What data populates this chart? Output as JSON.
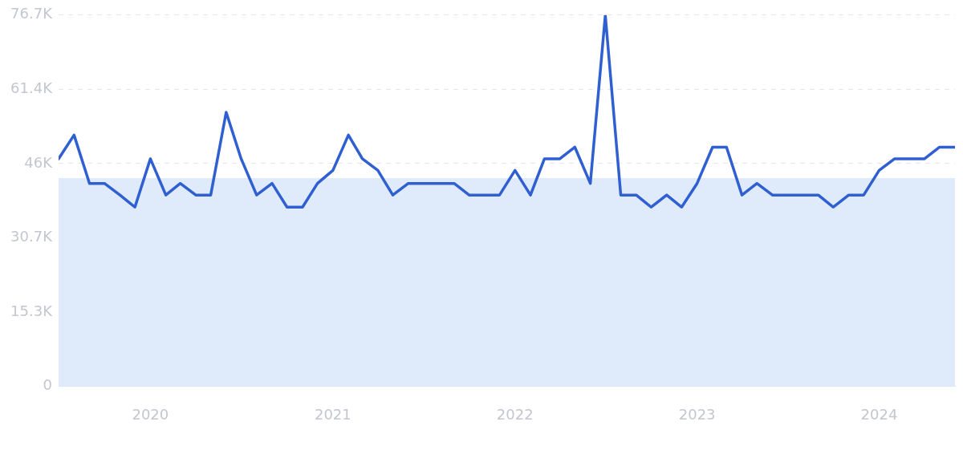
{
  "chart_data": {
    "type": "line",
    "x": [
      "2019-07",
      "2019-08",
      "2019-09",
      "2019-10",
      "2019-11",
      "2019-12",
      "2020-01",
      "2020-02",
      "2020-03",
      "2020-04",
      "2020-05",
      "2020-06",
      "2020-07",
      "2020-08",
      "2020-09",
      "2020-10",
      "2020-11",
      "2020-12",
      "2021-01",
      "2021-02",
      "2021-03",
      "2021-04",
      "2021-05",
      "2021-06",
      "2021-07",
      "2021-08",
      "2021-09",
      "2021-10",
      "2021-11",
      "2021-12",
      "2022-01",
      "2022-02",
      "2022-03",
      "2022-04",
      "2022-05",
      "2022-06",
      "2022-07",
      "2022-08",
      "2022-09",
      "2022-10",
      "2022-11",
      "2022-12",
      "2023-01",
      "2023-02",
      "2023-03",
      "2023-04",
      "2023-05",
      "2023-06",
      "2023-07",
      "2023-08",
      "2023-09",
      "2023-10",
      "2023-11",
      "2023-12",
      "2024-01",
      "2024-02",
      "2024-03",
      "2024-04",
      "2024-05",
      "2024-06"
    ],
    "series": [
      {
        "color": "#2f5fd0",
        "values": [
          47000,
          51900,
          41900,
          41900,
          39500,
          37000,
          47000,
          39500,
          41900,
          39500,
          39500,
          56600,
          47000,
          39500,
          41900,
          37000,
          37000,
          41900,
          44600,
          51900,
          47000,
          44600,
          39500,
          41900,
          41900,
          41900,
          41900,
          39500,
          39500,
          39500,
          44600,
          39500,
          47000,
          47000,
          49400,
          41900,
          76700,
          39500,
          39500,
          37000,
          39500,
          37000,
          41900,
          49400,
          49400,
          39500,
          41900,
          39500,
          39500,
          39500,
          39500,
          37000,
          39500,
          39500,
          44600,
          47000,
          47000,
          47000,
          49400,
          49400
        ]
      }
    ],
    "xlim": [
      "2019-07",
      "2024-06"
    ],
    "xticks": [
      "2020",
      "2021",
      "2022",
      "2023",
      "2024"
    ],
    "ylim": [
      0,
      76700
    ],
    "yticks": [
      0,
      {
        "value": 15300,
        "label": "15.3K"
      },
      {
        "value": 30700,
        "label": "30.7K"
      },
      {
        "value": 46000,
        "label": "46K"
      },
      {
        "value": 61400,
        "label": "61.4K"
      },
      {
        "value": 76700,
        "label": "76.7K"
      }
    ],
    "bands": [
      {
        "axis": "y",
        "from": 0,
        "to": 43000,
        "color": "#dfeafb"
      }
    ],
    "grid": "y",
    "marker": "none",
    "line_style": "solid",
    "legend": false
  }
}
